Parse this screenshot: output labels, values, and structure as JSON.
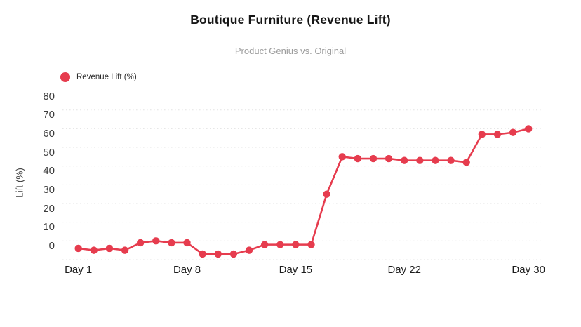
{
  "header": {
    "title": "Boutique Furniture (Revenue Lift)",
    "subtitle": "Product Genius vs. Original"
  },
  "legend": {
    "label": "Revenue Lift (%)",
    "color": "#e63c4e"
  },
  "chart_data": {
    "type": "line",
    "title": "Boutique Furniture (Revenue Lift)",
    "subtitle": "Product Genius vs. Original",
    "xlabel": "",
    "ylabel": "Lift (%)",
    "series": [
      {
        "name": "Revenue Lift (%)",
        "color": "#e63c4e",
        "x": [
          1,
          2,
          3,
          4,
          5,
          6,
          7,
          8,
          9,
          10,
          11,
          12,
          13,
          14,
          15,
          16,
          17,
          18,
          19,
          20,
          21,
          22,
          23,
          24,
          25,
          26,
          27,
          28,
          29,
          30
        ],
        "values": [
          -4,
          -5,
          -4,
          -5,
          -1,
          0,
          -1,
          -1,
          -7,
          -7,
          -7,
          -5,
          -2,
          -2,
          -2,
          -2,
          25,
          45,
          44,
          44,
          44,
          43,
          43,
          43,
          43,
          42,
          57,
          57,
          58,
          60
        ]
      }
    ],
    "xticks": {
      "days": [
        1,
        8,
        15,
        22,
        30
      ],
      "labels": [
        "Day 1",
        "Day 8",
        "Day 15",
        "Day 22",
        "Day 30"
      ]
    },
    "yticks": [
      0,
      10,
      20,
      30,
      40,
      50,
      60,
      70,
      80
    ],
    "gridlines": [
      -10,
      0,
      10,
      20,
      30,
      40,
      50,
      60,
      70
    ],
    "ylim": [
      -10,
      80
    ],
    "xlim": [
      1,
      30
    ],
    "grid": "horizontal-dotted",
    "grid_color": "#e3e3e3",
    "legend_position": "top-left",
    "marker": "circle"
  }
}
